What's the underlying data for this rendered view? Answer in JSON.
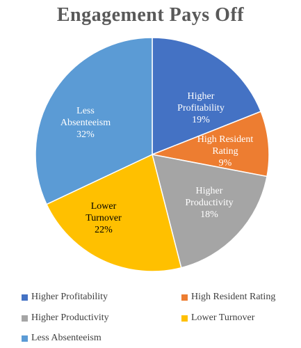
{
  "chart_data": {
    "type": "pie",
    "title": "Engagement Pays Off",
    "categories": [
      "Higher Profitability",
      "High Resident Rating",
      "Higher Productivity",
      "Lower Turnover",
      "Less Absenteeism"
    ],
    "values": [
      19,
      9,
      18,
      22,
      32
    ],
    "data_labels": [
      [
        "Higher",
        "Profitability",
        "19%"
      ],
      [
        "High Resident",
        "Rating",
        "9%"
      ],
      [
        "Higher",
        "Productivity",
        "18%"
      ],
      [
        "Lower",
        "Turnover",
        "22%"
      ],
      [
        "Less",
        "Absenteeism",
        "32%"
      ]
    ],
    "colors": [
      "#4472C4",
      "#ED7D31",
      "#A5A5A5",
      "#FFC000",
      "#5B9BD5"
    ],
    "legend_position": "bottom"
  }
}
